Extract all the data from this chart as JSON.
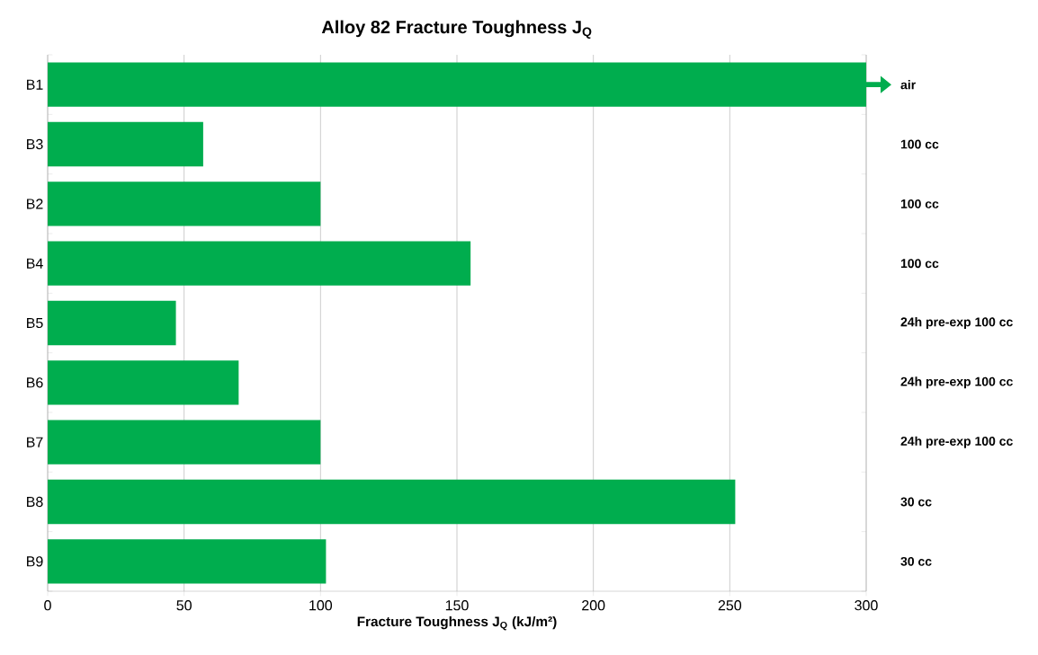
{
  "chart_data": {
    "type": "bar",
    "orientation": "horizontal",
    "title": "Alloy 82 Fracture Toughness J$_{Q}$",
    "xlabel": "Fracture Toughness J$_{Q}$ (kJ/m²)",
    "categories": [
      "B1",
      "B3",
      "B2",
      "B4",
      "B5",
      "B6",
      "B7",
      "B8",
      "B9"
    ],
    "values": [
      300,
      57,
      100,
      155,
      47,
      70,
      100,
      252,
      102
    ],
    "color": "#00ad4e",
    "xlim": [
      0,
      300
    ],
    "xticks": [
      0,
      50,
      100,
      150,
      200,
      250,
      300
    ],
    "grid": "x",
    "annotations": [
      "air",
      "100 cc",
      "100 cc",
      "100 cc",
      "24h pre-exp 100 cc",
      "24h pre-exp 100 cc",
      "24h pre-exp 100 cc",
      "30 cc",
      "30 cc"
    ]
  }
}
